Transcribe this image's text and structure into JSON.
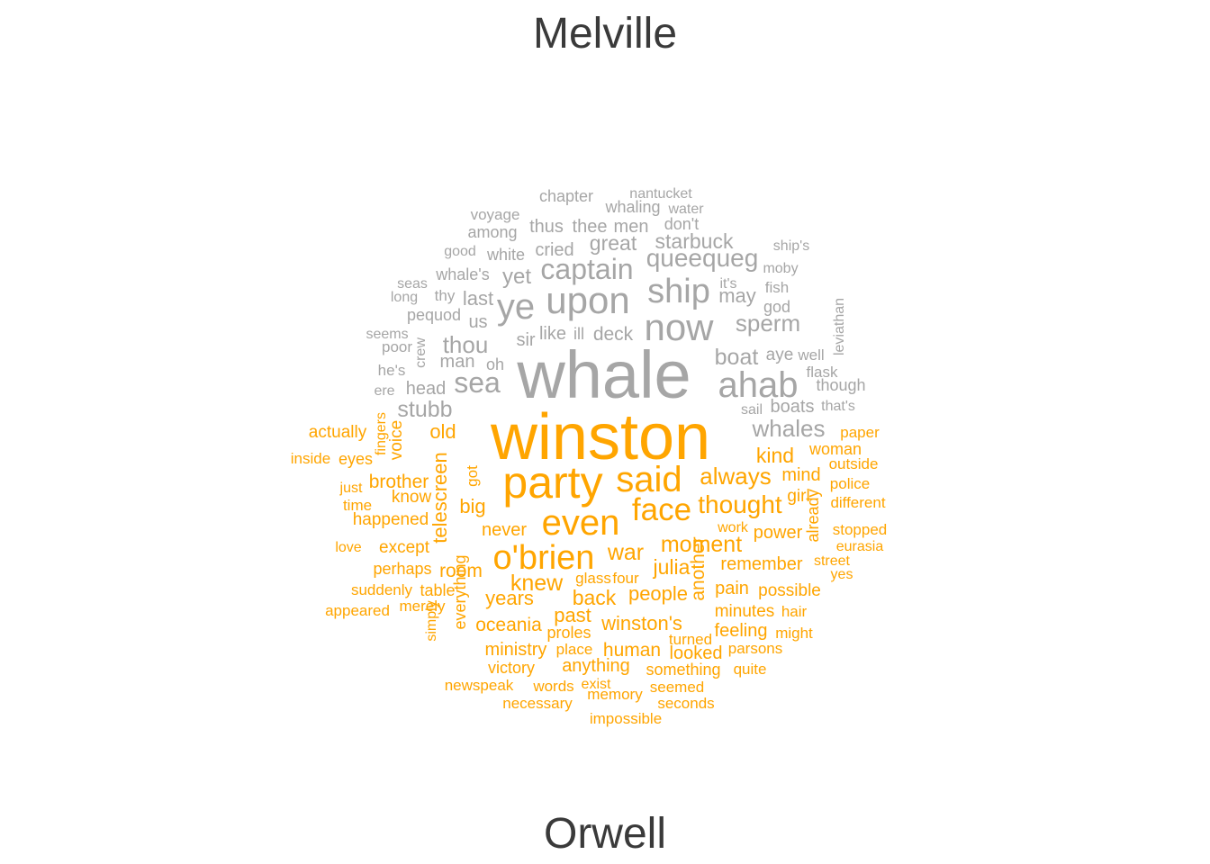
{
  "chart_data": {
    "type": "comparison wordcloud",
    "groups": [
      {
        "name": "Melville",
        "color": "#a6a6a6",
        "words": [
          "chapter",
          "nantucket",
          "whaling",
          "water",
          "voyage",
          "among",
          "thus",
          "thee",
          "men",
          "don't",
          "good",
          "white",
          "cried",
          "great",
          "starbuck",
          "ship's",
          "seas",
          "whale's",
          "yet",
          "captain",
          "queequeg",
          "moby",
          "long",
          "thy",
          "last",
          "ye",
          "upon",
          "ship",
          "it's",
          "fish",
          "may",
          "pequod",
          "us",
          "god",
          "seems",
          "sir",
          "like",
          "ill",
          "deck",
          "now",
          "sperm",
          "leviathan",
          "poor",
          "thou",
          "crew",
          "man",
          "oh",
          "boat",
          "aye",
          "well",
          "he's",
          "whale",
          "flask",
          "ere",
          "head",
          "sea",
          "ahab",
          "though",
          "stubb",
          "sail",
          "boats",
          "that's",
          "whales"
        ]
      },
      {
        "name": "Orwell",
        "color": "#ffa500",
        "words": [
          "winston",
          "actually",
          "fingers",
          "voice",
          "old",
          "paper",
          "inside",
          "eyes",
          "kind",
          "woman",
          "outside",
          "just",
          "brother",
          "party",
          "said",
          "always",
          "mind",
          "police",
          "time",
          "know",
          "telescreen",
          "got",
          "big",
          "thought",
          "girl",
          "different",
          "happened",
          "face",
          "already",
          "even",
          "never",
          "work",
          "power",
          "stopped",
          "love",
          "except",
          "o'brien",
          "war",
          "moment",
          "eurasia",
          "street",
          "perhaps",
          "room",
          "julia",
          "remember",
          "yes",
          "glass",
          "four",
          "another",
          "suddenly",
          "table",
          "knew",
          "pain",
          "possible",
          "years",
          "back",
          "people",
          "appeared",
          "merely",
          "everything",
          "past",
          "minutes",
          "hair",
          "simply",
          "oceania",
          "winston's",
          "proles",
          "feeling",
          "might",
          "turned",
          "ministry",
          "place",
          "human",
          "looked",
          "parsons",
          "victory",
          "anything",
          "something",
          "quite",
          "newspeak",
          "words",
          "exist",
          "seemed",
          "memory",
          "necessary",
          "seconds",
          "impossible"
        ]
      }
    ]
  }
}
